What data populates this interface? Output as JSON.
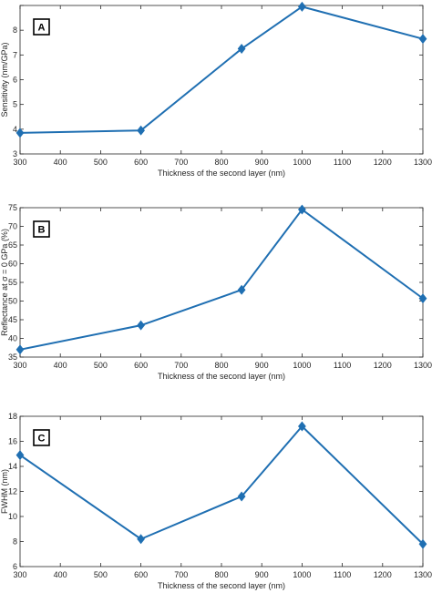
{
  "chart_data": [
    {
      "type": "line",
      "panel": "A",
      "xlabel": "Thickness of the second layer (nm)",
      "ylabel": "Sensitivity (nm/GPa)",
      "xlim": [
        300,
        1300
      ],
      "ylim": [
        3,
        9
      ],
      "xticks": [
        300,
        400,
        500,
        600,
        700,
        800,
        900,
        1000,
        1100,
        1200,
        1300
      ],
      "yticks": [
        3,
        4,
        5,
        6,
        7,
        8,
        9
      ],
      "yticklabels": [
        "3",
        "4",
        "5",
        "6",
        "7",
        "8",
        ""
      ],
      "grid": false,
      "color": "#1f6fb2",
      "series": [
        {
          "x": [
            300,
            600,
            850,
            1000,
            1300
          ],
          "values": [
            3.85,
            3.95,
            7.25,
            8.95,
            7.65
          ]
        }
      ]
    },
    {
      "type": "line",
      "panel": "B",
      "xlabel": "Thickness of the second layer (nm)",
      "ylabel": "Reflectance at σ = 0 GPa (%)",
      "xlim": [
        300,
        1300
      ],
      "ylim": [
        35,
        75
      ],
      "xticks": [
        300,
        400,
        500,
        600,
        700,
        800,
        900,
        1000,
        1100,
        1200,
        1300
      ],
      "yticks": [
        35,
        40,
        45,
        50,
        55,
        60,
        65,
        70,
        75
      ],
      "yticklabels": [
        "35",
        "40",
        "45",
        "50",
        "55",
        "60",
        "65",
        "70",
        "75"
      ],
      "grid": false,
      "color": "#1f6fb2",
      "series": [
        {
          "x": [
            300,
            600,
            850,
            1000,
            1300
          ],
          "values": [
            37.0,
            43.5,
            53.0,
            74.5,
            50.7
          ]
        }
      ]
    },
    {
      "type": "line",
      "panel": "C",
      "xlabel": "Thickness of the second layer (nm)",
      "ylabel": "FWHM (nm)",
      "xlim": [
        300,
        1300
      ],
      "ylim": [
        6,
        18
      ],
      "xticks": [
        300,
        400,
        500,
        600,
        700,
        800,
        900,
        1000,
        1100,
        1200,
        1300
      ],
      "yticks": [
        6,
        8,
        10,
        12,
        14,
        16,
        18
      ],
      "yticklabels": [
        "6",
        "8",
        "10",
        "12",
        "14",
        "16",
        "18"
      ],
      "grid": false,
      "color": "#1f6fb2",
      "series": [
        {
          "x": [
            300,
            600,
            850,
            1000,
            1300
          ],
          "values": [
            14.9,
            8.2,
            11.6,
            17.2,
            7.8
          ]
        }
      ]
    }
  ]
}
